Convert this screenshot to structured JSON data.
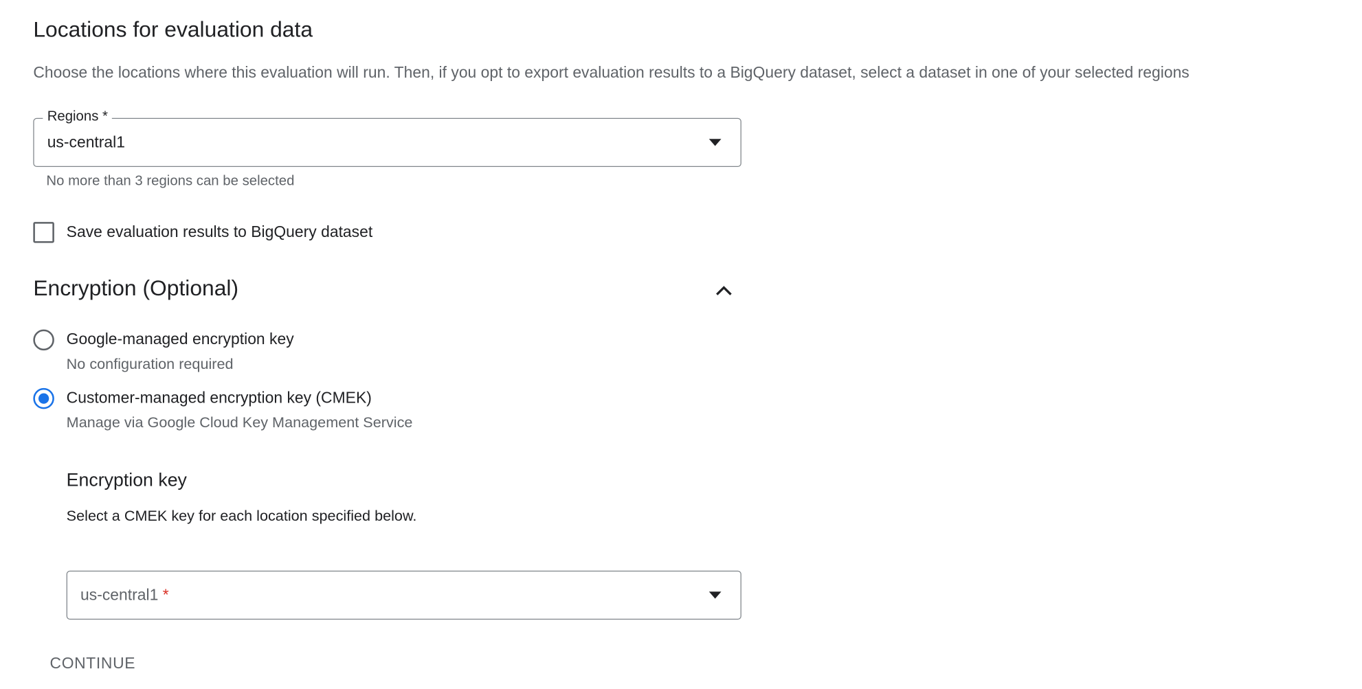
{
  "locations": {
    "title": "Locations for evaluation data",
    "description": "Choose the locations where this evaluation will run. Then, if you opt to export evaluation results to a BigQuery dataset, select a dataset in one of your selected regions",
    "regions_label": "Regions *",
    "regions_value": "us-central1",
    "regions_helper": "No more than 3 regions can be selected",
    "bigquery_checkbox_label": "Save evaluation results to BigQuery dataset",
    "bigquery_checked": false
  },
  "encryption": {
    "title": "Encryption (Optional)",
    "expanded": true,
    "options": [
      {
        "label": "Google-managed encryption key",
        "sub": "No configuration required",
        "selected": false
      },
      {
        "label": "Customer-managed encryption key (CMEK)",
        "sub": "Manage via Google Cloud Key Management Service",
        "selected": true
      }
    ],
    "key_title": "Encryption key",
    "key_description": "Select a CMEK key for each location specified below.",
    "key_field_label": "us-central1",
    "key_field_required": "*"
  },
  "actions": {
    "continue_label": "CONTINUE"
  },
  "colors": {
    "accent": "#1a73e8",
    "required": "#d93025",
    "secondary_text": "#5f6368"
  }
}
